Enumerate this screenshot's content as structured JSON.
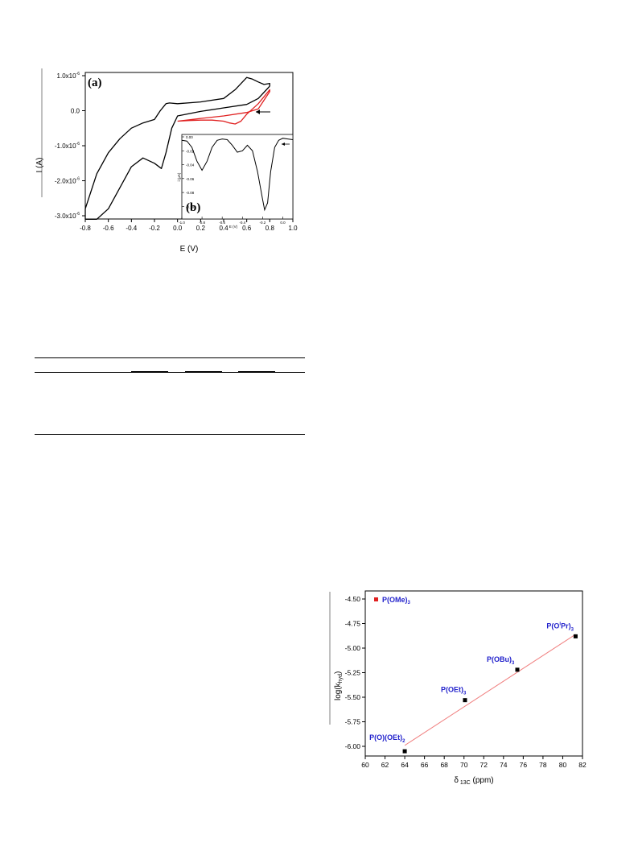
{
  "chart_data": [
    {
      "type": "line",
      "panel_label": "(a)",
      "xlabel": "E (V)",
      "ylabel": "I (A)",
      "xlim": [
        -0.8,
        1.0
      ],
      "ylim": [
        -3e-06,
        1e-06
      ],
      "x_ticks": [
        "-0.8",
        "-0.6",
        "-0.4",
        "-0.2",
        "0.0",
        "0.2",
        "0.4",
        "0.6",
        "0.8",
        "1.0"
      ],
      "y_ticks": [
        {
          "mant": "1.0x10",
          "v": 1e-06
        },
        {
          "mant": "0.0",
          "v": 0.0
        },
        {
          "mant": "-1.0x10",
          "v": -1e-06
        },
        {
          "mant": "-2.0x10",
          "v": -2e-06
        },
        {
          "mant": "-3.0x10",
          "v": -3e-06
        }
      ],
      "y_tick_exp": "-6",
      "series": [
        {
          "color": "#000000",
          "points": [
            [
              0.8,
              7e-07
            ],
            [
              0.7,
              3.5e-07
            ],
            [
              0.6,
              1.8e-07
            ],
            [
              0.4,
              8e-08
            ],
            [
              0.2,
              -2e-08
            ],
            [
              0.0,
              -1.5e-07
            ],
            [
              -0.05,
              -5e-07
            ],
            [
              -0.1,
              -1.2e-06
            ],
            [
              -0.14,
              -1.65e-06
            ],
            [
              -0.2,
              -1.5e-06
            ],
            [
              -0.3,
              -1.35e-06
            ],
            [
              -0.4,
              -1.6e-06
            ],
            [
              -0.5,
              -2.2e-06
            ],
            [
              -0.6,
              -2.8e-06
            ],
            [
              -0.7,
              -3.1e-06
            ],
            [
              -0.8,
              -3.1e-06
            ],
            [
              -0.8,
              -2.8e-06
            ],
            [
              -0.7,
              -1.8e-06
            ],
            [
              -0.6,
              -1.2e-06
            ],
            [
              -0.5,
              -8e-07
            ],
            [
              -0.4,
              -5e-07
            ],
            [
              -0.3,
              -3.5e-07
            ],
            [
              -0.2,
              -2.5e-07
            ],
            [
              -0.15,
              0.0
            ],
            [
              -0.1,
              2e-07
            ],
            [
              -0.07,
              2.2e-07
            ],
            [
              0.0,
              2e-07
            ],
            [
              0.2,
              2.5e-07
            ],
            [
              0.4,
              3.5e-07
            ],
            [
              0.5,
              6e-07
            ],
            [
              0.6,
              9.5e-07
            ],
            [
              0.65,
              9e-07
            ],
            [
              0.7,
              8.2e-07
            ],
            [
              0.75,
              7.5e-07
            ],
            [
              0.8,
              7.8e-07
            ],
            [
              0.8,
              7e-07
            ]
          ]
        },
        {
          "color": "#e02020",
          "points": [
            [
              0.0,
              -3e-07
            ],
            [
              0.1,
              -2.8e-07
            ],
            [
              0.2,
              -2.7e-07
            ],
            [
              0.3,
              -2.7e-07
            ],
            [
              0.4,
              -3e-07
            ],
            [
              0.45,
              -3.5e-07
            ],
            [
              0.5,
              -3.8e-07
            ],
            [
              0.55,
              -3e-07
            ],
            [
              0.6,
              -1e-07
            ],
            [
              0.7,
              2e-07
            ],
            [
              0.75,
              4e-07
            ],
            [
              0.8,
              6e-07
            ],
            [
              0.8,
              5.5e-07
            ],
            [
              0.7,
              5e-08
            ],
            [
              0.6,
              -5e-08
            ],
            [
              0.4,
              -1.5e-07
            ],
            [
              0.2,
              -2.2e-07
            ],
            [
              0.0,
              -3e-07
            ]
          ]
        }
      ],
      "inset": {
        "panel_label": "(b)",
        "xlabel": "E (V)",
        "ylabel": "i (μA)",
        "xlim": [
          -1.0,
          0.1
        ],
        "ylim": [
          -0.11,
          0.0
        ],
        "x_ticks": [
          "-1.0",
          "-0.8",
          "-0.6",
          "-0.4",
          "-0.2",
          "0.0"
        ],
        "y_ticks": [
          "0.00",
          "-0.02",
          "-0.04",
          "-0.06",
          "-0.08",
          "-0.10"
        ],
        "points": [
          [
            -1.0,
            -0.005
          ],
          [
            -0.95,
            -0.006
          ],
          [
            -0.9,
            -0.015
          ],
          [
            -0.85,
            -0.035
          ],
          [
            -0.8,
            -0.048
          ],
          [
            -0.75,
            -0.035
          ],
          [
            -0.7,
            -0.015
          ],
          [
            -0.65,
            -0.005
          ],
          [
            -0.6,
            -0.003
          ],
          [
            -0.55,
            -0.004
          ],
          [
            -0.5,
            -0.012
          ],
          [
            -0.45,
            -0.022
          ],
          [
            -0.4,
            -0.02
          ],
          [
            -0.35,
            -0.012
          ],
          [
            -0.3,
            -0.02
          ],
          [
            -0.25,
            -0.05
          ],
          [
            -0.2,
            -0.09
          ],
          [
            -0.18,
            -0.105
          ],
          [
            -0.15,
            -0.095
          ],
          [
            -0.12,
            -0.05
          ],
          [
            -0.08,
            -0.015
          ],
          [
            -0.04,
            -0.005
          ],
          [
            0.0,
            -0.002
          ],
          [
            0.05,
            -0.003
          ],
          [
            0.1,
            -0.004
          ]
        ]
      }
    },
    {
      "type": "scatter",
      "xlabel": "δ 13C (ppm)",
      "ylabel": "log(k",
      "ylabel_sub": "hyd",
      "ylabel_end": ")",
      "xlim": [
        60,
        82
      ],
      "ylim": [
        -6.1,
        -4.45
      ],
      "x_ticks": [
        "60",
        "62",
        "64",
        "66",
        "68",
        "70",
        "72",
        "74",
        "76",
        "78",
        "80",
        "82"
      ],
      "y_ticks": [
        "-4.50",
        "-4.75",
        "-5.00",
        "-5.25",
        "-5.50",
        "-5.75",
        "-6.00"
      ],
      "legend": {
        "label": "P(OMe)",
        "sub": "3",
        "color": "#e02020"
      },
      "points": [
        {
          "x": 64.0,
          "y": -6.05,
          "label": "P(O)(OEt)",
          "sub": "2"
        },
        {
          "x": 70.1,
          "y": -5.53,
          "label": "P(OEt)",
          "sub": "3"
        },
        {
          "x": 75.4,
          "y": -5.22,
          "label": "P(OBu)",
          "sub": "3"
        },
        {
          "x": 81.3,
          "y": -4.88,
          "label": "P(O",
          "sup": "i",
          "after": "Pr)",
          "sub": "3"
        }
      ],
      "fit": {
        "x": [
          64.0,
          81.3
        ],
        "y": [
          -5.99,
          -4.86
        ],
        "color": "#f08080"
      }
    }
  ]
}
